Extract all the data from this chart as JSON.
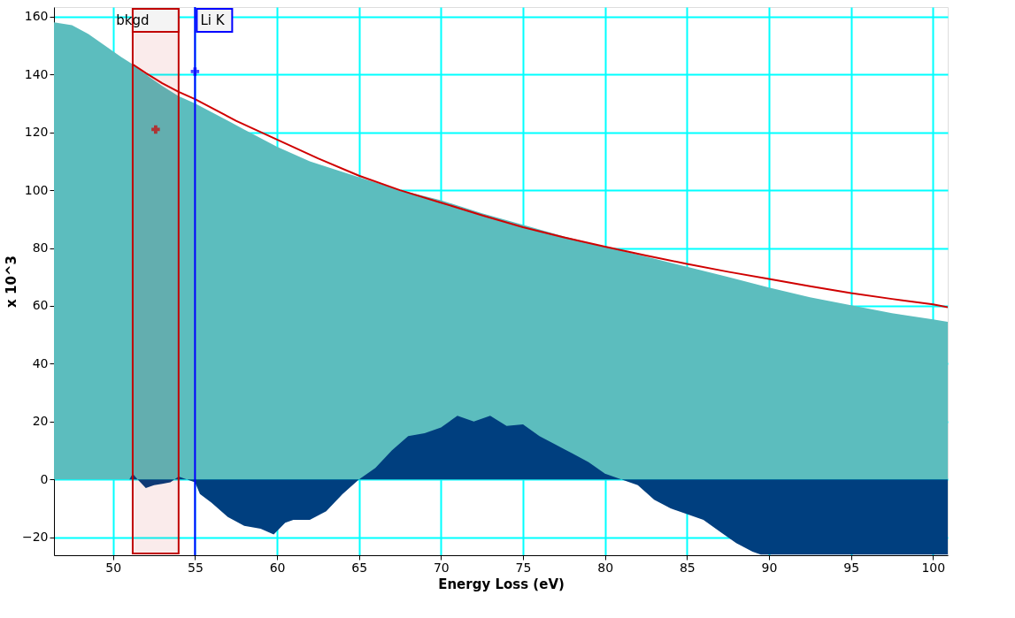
{
  "chart_data": {
    "type": "area",
    "xlabel": "Energy Loss (eV)",
    "ylabel": "x 10^3",
    "xlim": [
      46.4,
      100.9
    ],
    "ylim": [
      -26.2,
      163.3
    ],
    "xticks": [
      50,
      55,
      60,
      65,
      70,
      75,
      80,
      85,
      90,
      95,
      100
    ],
    "yticks": [
      -20,
      0,
      20,
      40,
      60,
      80,
      100,
      120,
      140,
      160
    ],
    "grid": true,
    "series": [
      {
        "color": "#5cbdbe",
        "x": [
          46.4,
          47.5,
          48.5,
          49.5,
          50.5,
          51.2,
          52,
          53,
          54,
          55,
          56,
          57,
          58,
          59,
          60,
          62,
          65,
          67.5,
          70,
          72.5,
          75,
          77.5,
          80,
          82.5,
          85,
          87.5,
          90,
          92.5,
          95,
          97.5,
          100,
          100.9
        ],
        "values": [
          158,
          157,
          154,
          150,
          146,
          143.5,
          140,
          136,
          132.5,
          130,
          127,
          124,
          121,
          118,
          115,
          110,
          104.5,
          100,
          96.5,
          92,
          88,
          84,
          80.5,
          77,
          73.5,
          70,
          66.3,
          63,
          60.2,
          57.5,
          55.3,
          54.5
        ]
      },
      {
        "type": "area",
        "color": "#003f7f",
        "x": [
          46.4,
          51,
          51.2,
          51.5,
          52,
          52.5,
          53,
          53.5,
          54,
          54.5,
          55,
          55.3,
          56,
          57,
          58,
          59,
          59.8,
          60.5,
          61,
          62,
          63,
          64,
          65,
          66,
          67,
          68,
          69,
          70,
          71,
          72,
          73,
          74,
          75,
          76,
          77,
          78,
          79,
          80,
          81,
          82,
          83,
          84,
          85,
          86,
          87,
          88,
          89,
          89.5,
          95,
          100.9
        ],
        "values": [
          0,
          0,
          2,
          0,
          -3,
          -2,
          -1.5,
          -1,
          1,
          0,
          -1,
          -5,
          -8,
          -13,
          -16,
          -17,
          -19,
          -15,
          -14,
          -14,
          -11,
          -5,
          0,
          4,
          10,
          15,
          16,
          18,
          22,
          20,
          22,
          18.5,
          19,
          15,
          12,
          9,
          6,
          2,
          0,
          -2,
          -7,
          -10,
          -12,
          -14,
          -18,
          -22,
          -25,
          -26,
          -26,
          -26
        ]
      },
      {
        "type": "line",
        "color": "#d00000",
        "x": [
          51.2,
          52,
          53,
          54,
          55,
          57.5,
          60,
          62.5,
          65,
          67.5,
          70,
          72.5,
          75,
          77.5,
          80,
          82.5,
          85,
          87.5,
          90,
          92.5,
          95,
          97.5,
          100,
          100.9
        ],
        "values": [
          143.5,
          140.5,
          137,
          134,
          131.5,
          124,
          117.5,
          111,
          105,
          100,
          95.7,
          91.3,
          87.2,
          83.7,
          80.5,
          77.4,
          74.5,
          71.8,
          69.3,
          66.8,
          64.4,
          62.4,
          60.5,
          59.5
        ]
      },
      {
        "type": "scatter",
        "marker": "cross",
        "color": "#d00000",
        "x": [
          52.6
        ],
        "values": [
          121
        ]
      },
      {
        "type": "scatter",
        "marker": "cross",
        "color": "#0000ff",
        "x": [
          55
        ],
        "values": [
          141
        ]
      }
    ],
    "bands": [
      {
        "axis": "x",
        "from": 51.2,
        "to": 54.0,
        "label": "bkgd",
        "color": "#c00000"
      }
    ],
    "ref_lines": [
      {
        "axis": "x",
        "value": 55,
        "label": "Li K",
        "color": "#0000ff"
      }
    ]
  }
}
